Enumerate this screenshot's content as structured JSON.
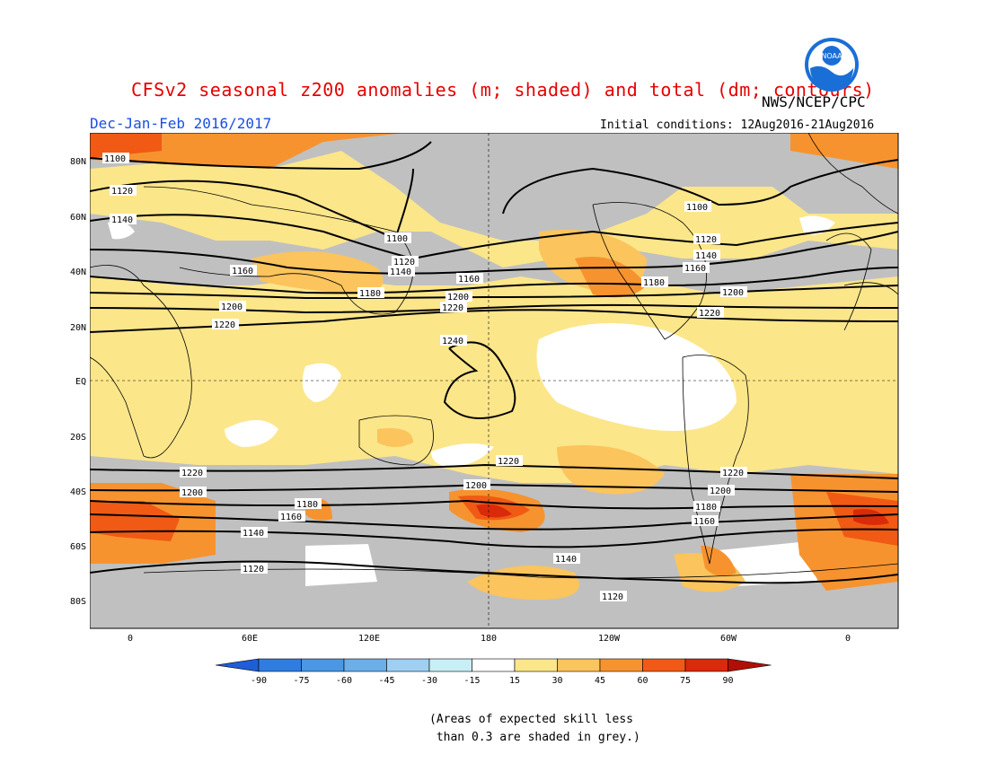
{
  "title": "CFSv2 seasonal z200 anomalies (m; shaded) and total (dm; contours)",
  "subtitle": "Dec-Jan-Feb 2016/2017",
  "organization": "NWS/NCEP/CPC",
  "initial_conditions": "Initial conditions: 12Aug2016-21Aug2016",
  "logo_text": "NOAA",
  "lat_ticks": [
    "80N",
    "60N",
    "40N",
    "20N",
    "EQ",
    "20S",
    "40S",
    "60S",
    "80S"
  ],
  "lon_ticks": [
    "0",
    "60E",
    "120E",
    "180",
    "120W",
    "60W",
    "0"
  ],
  "colorbar": {
    "labels": [
      "-90",
      "-75",
      "-60",
      "-45",
      "-30",
      "-15",
      "15",
      "30",
      "45",
      "60",
      "75",
      "90"
    ],
    "colors": [
      "#1e5ed8",
      "#2f7de0",
      "#4a97e6",
      "#6aaeea",
      "#9fd0f2",
      "#c8eef6",
      "#ffffff",
      "#fce68a",
      "#fbc45c",
      "#f7932e",
      "#f05a14",
      "#d92a0a",
      "#b00f05"
    ]
  },
  "contour_labels": {
    "c1100a": "1100",
    "c1100b": "1100",
    "c1100c": "1100",
    "c1120a": "1120",
    "c1120b": "1120",
    "c1120c": "1120",
    "c1120d": "1120",
    "c1120e": "1120",
    "c1140a": "1140",
    "c1140b": "1140",
    "c1140c": "1140",
    "c1140d": "1140",
    "c1140e": "1140",
    "c1160a": "1160",
    "c1160b": "1160",
    "c1160c": "1160",
    "c1160d": "1160",
    "c1160e": "1160",
    "c1180a": "1180",
    "c1180b": "1180",
    "c1180c": "1180",
    "c1180d": "1180",
    "c1200a": "1200",
    "c1200b": "1200",
    "c1200c": "1200",
    "c1200d": "1200",
    "c1200e": "1200",
    "c1220a": "1220",
    "c1220b": "1220",
    "c1220c": "1220",
    "c1220d": "1220",
    "c1220e": "1220",
    "c1240a": "1240"
  },
  "note": "(Areas of expected skill less\n than 0.3 are shaded in grey.)"
}
